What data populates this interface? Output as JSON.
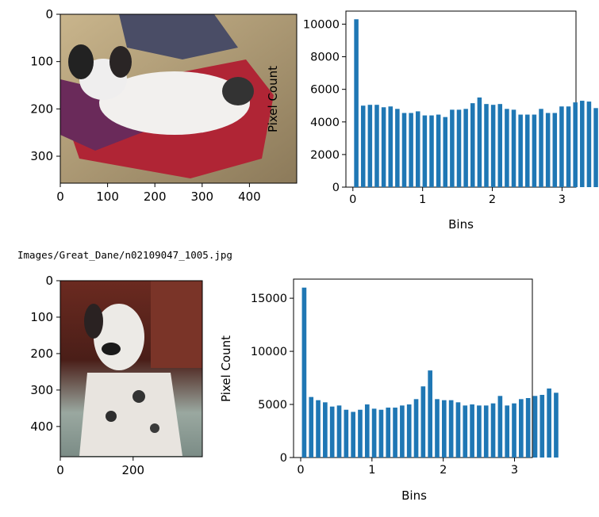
{
  "caption": "Images/Great_Dane/n02109047_1005.jpg",
  "chart_data": [
    {
      "type": "image",
      "image_desc": "Papillon dog lying on red and purple cushions",
      "xticks": [
        "0",
        "100",
        "200",
        "300",
        "400"
      ],
      "yticks": [
        "0",
        "100",
        "200",
        "300"
      ]
    },
    {
      "type": "bar",
      "xlabel": "Bins",
      "ylabel": "Pixel Count",
      "xlim": [
        -0.1,
        3.2
      ],
      "ylim": [
        0,
        10800
      ],
      "xticks": [
        0,
        1,
        2,
        3
      ],
      "yticks": [
        0,
        2000,
        4000,
        6000,
        8000,
        10000
      ],
      "bin_width": 0.09817,
      "bar_color": "#1f77b4",
      "values": [
        10300,
        5000,
        5050,
        5050,
        4900,
        4950,
        4800,
        4550,
        4550,
        4650,
        4400,
        4400,
        4450,
        4300,
        4750,
        4750,
        4800,
        5150,
        5500,
        5100,
        5050,
        5100,
        4800,
        4750,
        4450,
        4450,
        4450,
        4800,
        4550,
        4550,
        4950,
        4950,
        5200,
        5300,
        5250,
        4850
      ]
    },
    {
      "type": "image",
      "image_desc": "Merle Great Dane lying on a blanket",
      "xticks": [
        "0",
        "200"
      ],
      "yticks": [
        "0",
        "100",
        "200",
        "300",
        "400"
      ]
    },
    {
      "type": "bar",
      "xlabel": "Bins",
      "ylabel": "Pixel Count",
      "xlim": [
        -0.1,
        3.25
      ],
      "ylim": [
        0,
        16800
      ],
      "xticks": [
        0,
        1,
        2,
        3
      ],
      "yticks": [
        0,
        5000,
        10000,
        15000
      ],
      "bin_width": 0.09817,
      "bar_color": "#1f77b4",
      "values": [
        16000,
        5700,
        5400,
        5200,
        4800,
        4900,
        4500,
        4300,
        4500,
        5000,
        4600,
        4500,
        4700,
        4700,
        4900,
        5000,
        5500,
        6700,
        8200,
        5500,
        5400,
        5400,
        5200,
        4900,
        5000,
        4900,
        4900,
        5100,
        5800,
        4900,
        5100,
        5500,
        5600,
        5800,
        5900,
        6500,
        6100
      ]
    }
  ]
}
